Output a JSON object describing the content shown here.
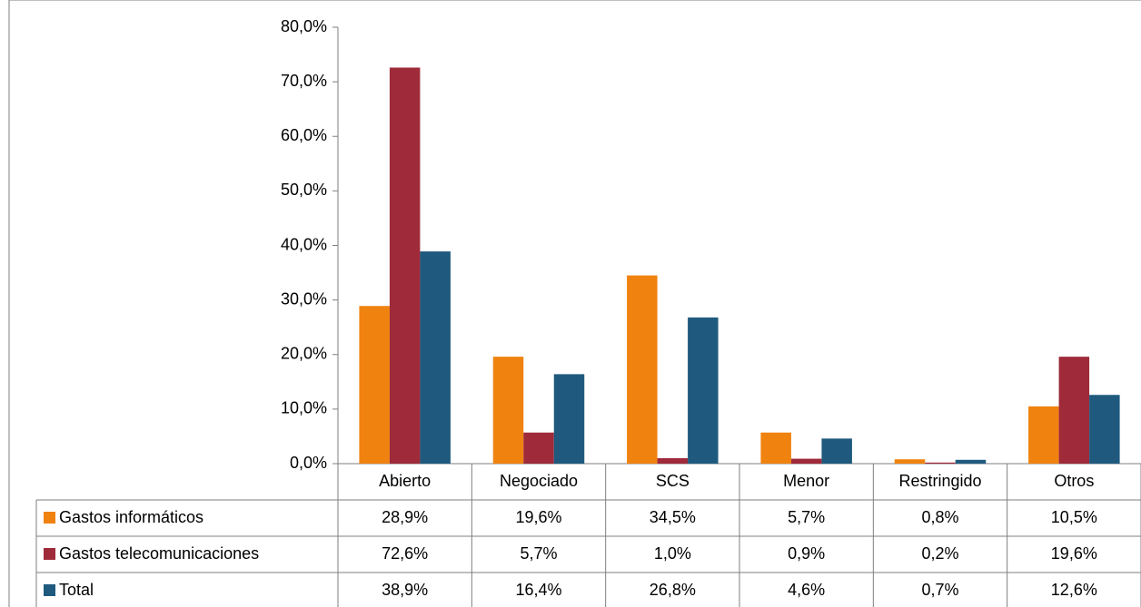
{
  "chart_data": {
    "type": "bar",
    "categories": [
      "Abierto",
      "Negociado",
      "SCS",
      "Menor",
      "Restringido",
      "Otros"
    ],
    "series": [
      {
        "name": "Gastos informáticos",
        "color": "#f0820f",
        "values": [
          28.9,
          19.6,
          34.5,
          5.7,
          0.8,
          10.5
        ],
        "value_labels": [
          "28,9%",
          "19,6%",
          "34,5%",
          "5,7%",
          "0,8%",
          "10,5%"
        ]
      },
      {
        "name": "Gastos telecomunicaciones",
        "color": "#9e2a3a",
        "values": [
          72.6,
          5.7,
          1.0,
          0.9,
          0.2,
          19.6
        ],
        "value_labels": [
          "72,6%",
          "5,7%",
          "1,0%",
          "0,9%",
          "0,2%",
          "19,6%"
        ]
      },
      {
        "name": "Total",
        "color": "#1f5a7e",
        "values": [
          38.9,
          16.4,
          26.8,
          4.6,
          0.7,
          12.6
        ],
        "value_labels": [
          "38,9%",
          "16,4%",
          "26,8%",
          "4,6%",
          "0,7%",
          "12,6%"
        ]
      }
    ],
    "ylim": [
      0,
      80
    ],
    "yticks": [
      {
        "value": 0,
        "label": "0,0%"
      },
      {
        "value": 10,
        "label": "10,0%"
      },
      {
        "value": 20,
        "label": "20,0%"
      },
      {
        "value": 30,
        "label": "30,0%"
      },
      {
        "value": 40,
        "label": "40,0%"
      },
      {
        "value": 50,
        "label": "50,0%"
      },
      {
        "value": 60,
        "label": "60,0%"
      },
      {
        "value": 70,
        "label": "70,0%"
      },
      {
        "value": 80,
        "label": "80,0%"
      }
    ],
    "grid": false
  }
}
